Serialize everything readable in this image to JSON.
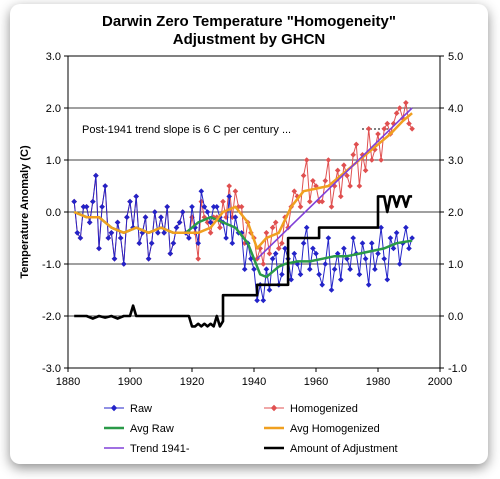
{
  "chart_data": {
    "type": "line",
    "title_line1": "Darwin Zero Temperature \"Homogeneity\"",
    "title_line2": "Adjustment by GHCN",
    "ylabel": "Temperature Anomaly (C)",
    "xlabel": "",
    "xlim": [
      1880,
      2000
    ],
    "ylim_left": [
      -3.0,
      3.0
    ],
    "ylim_right": [
      -1.0,
      5.0
    ],
    "x_ticks": [
      "1880",
      "1900",
      "1920",
      "1940",
      "1960",
      "1980",
      "2000"
    ],
    "y_ticks_left": [
      "3.0",
      "2.0",
      "1.0",
      "0.0",
      "-1.0",
      "-2.0",
      "-3.0"
    ],
    "y_ticks_right": [
      "5.0",
      "4.0",
      "3.0",
      "2.0",
      "1.0",
      "0.0",
      "-1.0"
    ],
    "grid": "horizontal",
    "annotation": "Post-1941 trend slope is 6 C per century ...",
    "colors": {
      "raw": "#2323c8",
      "homogenized": "#e05050",
      "avg_raw": "#2a9a48",
      "avg_homogenized": "#f0a020",
      "trend": "#8040d8",
      "adjustment": "#000000"
    },
    "legend": {
      "raw": "Raw",
      "homogenized": "Homogenized",
      "avg_raw": "Avg Raw",
      "avg_homogenized": "Avg Homogenized",
      "trend": "Trend 1941-",
      "adjustment": "Amount of Adjustment"
    },
    "series": [
      {
        "name": "Raw",
        "axis": "left",
        "x": [
          1882,
          1883,
          1884,
          1885,
          1886,
          1887,
          1888,
          1889,
          1890,
          1891,
          1892,
          1893,
          1894,
          1895,
          1896,
          1897,
          1898,
          1899,
          1900,
          1901,
          1902,
          1903,
          1904,
          1905,
          1906,
          1907,
          1908,
          1909,
          1910,
          1911,
          1912,
          1913,
          1914,
          1915,
          1916,
          1917,
          1918,
          1919,
          1920,
          1921,
          1922,
          1923,
          1924,
          1925,
          1926,
          1927,
          1928,
          1929,
          1930,
          1931,
          1932,
          1933,
          1934,
          1935,
          1936,
          1937,
          1938,
          1939,
          1940,
          1941,
          1942,
          1943,
          1944,
          1945,
          1946,
          1947,
          1948,
          1949,
          1950,
          1951,
          1952,
          1953,
          1954,
          1955,
          1956,
          1957,
          1958,
          1959,
          1960,
          1961,
          1962,
          1963,
          1964,
          1965,
          1966,
          1967,
          1968,
          1969,
          1970,
          1971,
          1972,
          1973,
          1974,
          1975,
          1976,
          1977,
          1978,
          1979,
          1980,
          1981,
          1982,
          1983,
          1984,
          1985,
          1986,
          1987,
          1988,
          1989,
          1990,
          1991
        ],
        "y": [
          0.2,
          -0.4,
          -0.5,
          0.1,
          0.1,
          -0.2,
          0.2,
          0.7,
          -0.7,
          0.1,
          0.5,
          -0.5,
          -0.4,
          -0.9,
          -0.2,
          -0.5,
          -1.0,
          -0.1,
          0.2,
          -0.3,
          0.3,
          -0.6,
          -0.4,
          -0.1,
          -0.9,
          -0.6,
          0.0,
          -0.4,
          -0.1,
          -0.4,
          0.1,
          -0.8,
          -0.6,
          -0.3,
          -0.2,
          0.0,
          -0.4,
          -0.5,
          0.1,
          -0.3,
          -0.6,
          0.4,
          0.1,
          0.0,
          -0.2,
          0.1,
          0.1,
          -0.1,
          -0.2,
          -0.5,
          0.3,
          -0.6,
          -0.1,
          -0.4,
          -0.4,
          -1.1,
          -0.6,
          -0.9,
          -1.1,
          -1.7,
          -1.4,
          -1.7,
          -1.1,
          -1.5,
          -0.9,
          -0.8,
          -1.4,
          -1.2,
          -0.7,
          -0.9,
          -1.3,
          -0.8,
          -1.0,
          -1.2,
          -0.6,
          -0.3,
          -1.1,
          -0.7,
          -0.8,
          -1.2,
          -1.4,
          -1.0,
          -0.5,
          -1.5,
          -1.1,
          -0.8,
          -1.3,
          -0.7,
          -0.9,
          -1.1,
          -0.5,
          -0.8,
          -1.2,
          -0.6,
          -0.9,
          -1.4,
          -0.6,
          -1.1,
          -0.8,
          -0.3,
          -0.9,
          -1.3,
          -0.5,
          -0.7,
          -0.4,
          -1.0,
          -0.6,
          -0.3,
          -0.7,
          -0.5
        ],
        "marker": "diamond"
      },
      {
        "name": "Homogenized",
        "axis": "left",
        "x": [
          1882,
          1883,
          1884,
          1885,
          1886,
          1887,
          1888,
          1889,
          1890,
          1891,
          1892,
          1893,
          1894,
          1895,
          1896,
          1897,
          1898,
          1899,
          1900,
          1901,
          1902,
          1903,
          1904,
          1905,
          1906,
          1907,
          1908,
          1909,
          1910,
          1911,
          1912,
          1913,
          1914,
          1915,
          1916,
          1917,
          1918,
          1919,
          1920,
          1921,
          1922,
          1923,
          1924,
          1925,
          1926,
          1927,
          1928,
          1929,
          1930,
          1931,
          1932,
          1933,
          1934,
          1935,
          1936,
          1937,
          1938,
          1939,
          1940,
          1941,
          1942,
          1943,
          1944,
          1945,
          1946,
          1947,
          1948,
          1949,
          1950,
          1951,
          1952,
          1953,
          1954,
          1955,
          1956,
          1957,
          1958,
          1959,
          1960,
          1961,
          1962,
          1963,
          1964,
          1965,
          1966,
          1967,
          1968,
          1969,
          1970,
          1971,
          1972,
          1973,
          1974,
          1975,
          1976,
          1977,
          1978,
          1979,
          1980,
          1981,
          1982,
          1983,
          1984,
          1985,
          1986,
          1987,
          1988,
          1989,
          1990,
          1991
        ],
        "y": [
          0.2,
          -0.4,
          -0.5,
          0.1,
          0.1,
          -0.2,
          0.2,
          0.7,
          -0.7,
          0.1,
          0.5,
          -0.5,
          -0.4,
          -0.9,
          -0.2,
          -0.5,
          -1.0,
          -0.1,
          0.2,
          -0.3,
          0.3,
          -0.6,
          -0.4,
          -0.1,
          -0.9,
          -0.6,
          0.0,
          -0.4,
          -0.1,
          -0.4,
          0.1,
          -0.8,
          -0.6,
          -0.3,
          -0.2,
          0.0,
          -0.4,
          -0.5,
          -0.1,
          -0.4,
          -0.9,
          0.2,
          -0.1,
          -0.2,
          -0.4,
          -0.1,
          -0.1,
          -0.3,
          0.2,
          -0.1,
          0.5,
          -0.1,
          0.4,
          0.1,
          0.1,
          -0.6,
          -0.2,
          -0.4,
          -0.5,
          -0.9,
          -0.7,
          -1.0,
          -0.4,
          -0.8,
          -0.3,
          -0.2,
          -0.7,
          -0.6,
          -0.1,
          -0.3,
          0.1,
          0.4,
          0.3,
          0.1,
          0.7,
          1.0,
          0.2,
          0.6,
          0.5,
          0.2,
          0.2,
          0.6,
          1.0,
          0.1,
          0.5,
          0.8,
          0.3,
          0.9,
          0.7,
          0.5,
          1.1,
          1.3,
          0.5,
          1.1,
          0.8,
          1.6,
          1.0,
          1.2,
          1.5,
          1.0,
          1.6,
          1.7,
          1.5,
          1.7,
          1.9,
          2.0,
          1.8,
          2.1,
          1.7,
          1.6
        ],
        "marker": "diamond"
      },
      {
        "name": "Avg Raw",
        "axis": "left",
        "x": [
          1882,
          1886,
          1890,
          1894,
          1898,
          1902,
          1906,
          1910,
          1914,
          1918,
          1922,
          1926,
          1930,
          1934,
          1938,
          1940,
          1942,
          1944,
          1946,
          1948,
          1950,
          1954,
          1958,
          1962,
          1966,
          1970,
          1974,
          1978,
          1982,
          1986,
          1991
        ],
        "y": [
          0.0,
          -0.1,
          -0.1,
          -0.3,
          -0.4,
          -0.3,
          -0.4,
          -0.3,
          -0.4,
          -0.4,
          -0.2,
          -0.1,
          -0.2,
          -0.3,
          -0.6,
          -0.9,
          -1.2,
          -1.25,
          -1.15,
          -1.05,
          -1.0,
          -0.95,
          -0.95,
          -0.9,
          -0.85,
          -0.85,
          -0.8,
          -0.75,
          -0.7,
          -0.6,
          -0.55
        ]
      },
      {
        "name": "Avg Homogenized",
        "axis": "left",
        "x": [
          1882,
          1886,
          1890,
          1894,
          1898,
          1902,
          1906,
          1910,
          1914,
          1918,
          1922,
          1926,
          1930,
          1934,
          1938,
          1941,
          1944,
          1948,
          1952,
          1956,
          1960,
          1964,
          1968,
          1972,
          1976,
          1980,
          1984,
          1988,
          1991
        ],
        "y": [
          0.0,
          -0.1,
          -0.1,
          -0.3,
          -0.4,
          -0.3,
          -0.4,
          -0.3,
          -0.4,
          -0.4,
          -0.4,
          -0.3,
          0.0,
          0.1,
          -0.2,
          -0.7,
          -0.5,
          -0.4,
          0.1,
          0.4,
          0.45,
          0.5,
          0.7,
          0.9,
          1.1,
          1.3,
          1.5,
          1.75,
          1.9
        ]
      },
      {
        "name": "Trend 1941-",
        "axis": "left",
        "x": [
          1941,
          1991
        ],
        "y": [
          -0.9,
          2.0
        ]
      },
      {
        "name": "Amount of Adjustment",
        "axis": "right",
        "x": [
          1882,
          1884,
          1886,
          1888,
          1890,
          1892,
          1894,
          1896,
          1898,
          1900,
          1901,
          1902,
          1904,
          1906,
          1908,
          1910,
          1912,
          1914,
          1916,
          1918,
          1919,
          1920,
          1921,
          1922,
          1923,
          1924,
          1925,
          1926,
          1927,
          1928,
          1929,
          1930,
          1930,
          1940,
          1941,
          1941,
          1950,
          1951,
          1951,
          1960,
          1961,
          1961,
          1979,
          1980,
          1980,
          1982,
          1983,
          1984,
          1985,
          1986,
          1987,
          1988,
          1989,
          1990,
          1991
        ],
        "y": [
          0.0,
          0.0,
          0.0,
          -0.05,
          0.0,
          -0.03,
          0.0,
          -0.05,
          0.0,
          0.0,
          0.2,
          0.0,
          0.0,
          0.0,
          0.0,
          0.0,
          0.0,
          0.0,
          0.0,
          0.0,
          0.0,
          -0.2,
          -0.2,
          -0.15,
          -0.2,
          -0.15,
          -0.2,
          -0.15,
          -0.2,
          0.0,
          -0.2,
          -0.1,
          0.4,
          0.4,
          0.4,
          0.6,
          0.6,
          0.6,
          1.5,
          1.5,
          1.5,
          1.7,
          1.7,
          1.7,
          2.3,
          2.3,
          2.0,
          2.3,
          2.3,
          2.1,
          2.3,
          2.3,
          2.1,
          2.3,
          2.3
        ]
      }
    ]
  }
}
